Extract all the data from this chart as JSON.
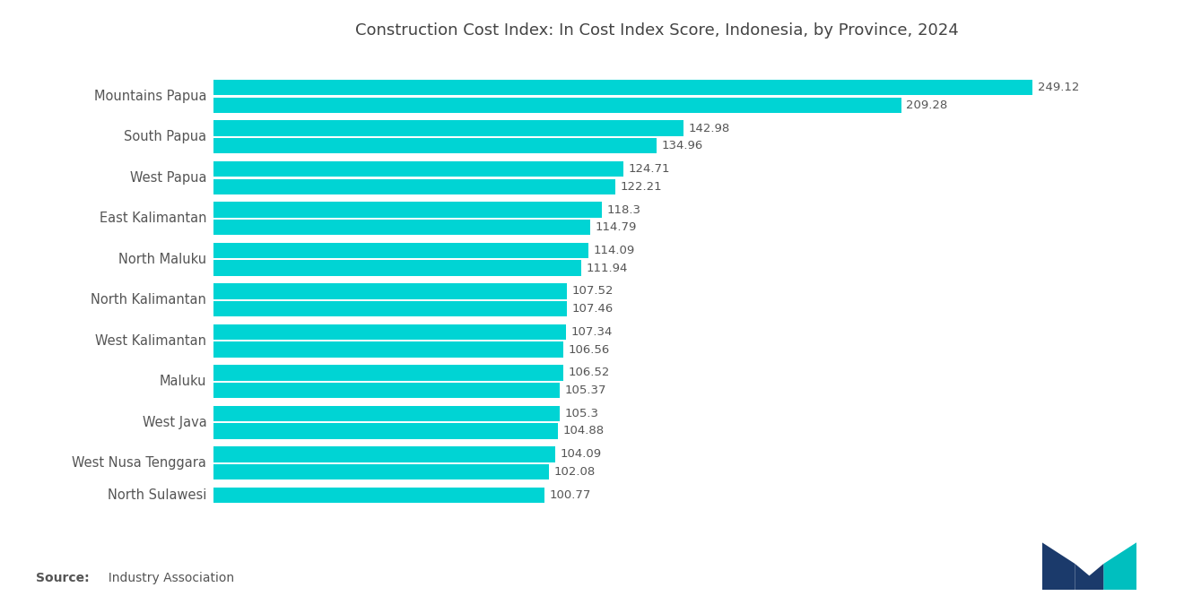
{
  "title": "Construction Cost Index: In Cost Index Score, Indonesia, by Province, 2024",
  "source_label": "Source:",
  "source_text": "  Industry Association",
  "bar_color": "#00D4D4",
  "background_color": "#FFFFFF",
  "provinces": [
    "Mountains Papua",
    "South Papua",
    "West Papua",
    "East Kalimantan",
    "North Maluku",
    "North Kalimantan",
    "West Kalimantan",
    "Maluku",
    "West Java",
    "West Nusa Tenggara",
    "North Sulawesi"
  ],
  "values_upper": [
    249.12,
    142.98,
    124.71,
    118.3,
    114.09,
    107.52,
    107.34,
    106.52,
    105.3,
    104.09,
    100.77
  ],
  "values_lower": [
    209.28,
    134.96,
    122.21,
    114.79,
    111.94,
    107.46,
    106.56,
    105.37,
    104.88,
    102.08,
    null
  ],
  "title_fontsize": 13,
  "label_fontsize": 10.5,
  "value_fontsize": 9.5,
  "source_fontsize": 10,
  "xlim_max": 270,
  "logo_dark": "#1B3A6B",
  "logo_teal": "#00BFBF"
}
